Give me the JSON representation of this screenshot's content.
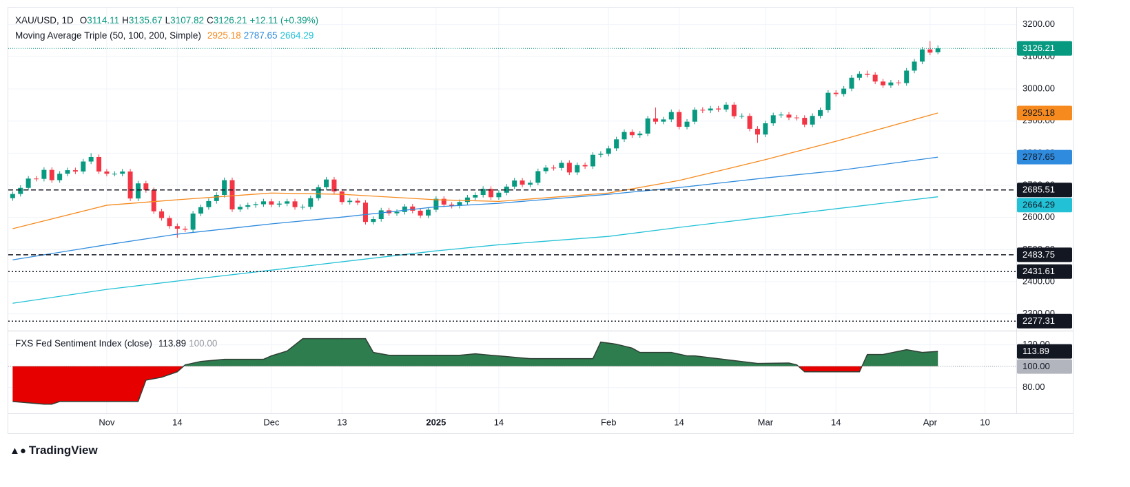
{
  "header": {
    "symbol": "XAU/USD, 1D",
    "ohlc_prefixes": [
      "O",
      "H",
      "L",
      "C"
    ],
    "change": "+12.11 (+0.39%)"
  },
  "brand": "TradingView",
  "chart_data": [
    {
      "type": "candlestick",
      "overlays_title": "Moving Average Triple (50, 100, 200, Simple)",
      "up_color": "#089981",
      "down_color": "#f23645",
      "open": [
        2660,
        2673,
        2692,
        2721,
        2720,
        2748,
        2716,
        2736,
        2747,
        2743,
        2774,
        2788,
        2743,
        2736,
        2736,
        2743,
        2659,
        2706,
        2685,
        2619,
        2598,
        2573,
        2565,
        2562,
        2612,
        2632,
        2651,
        2670,
        2716,
        2625,
        2633,
        2638,
        2641,
        2650,
        2640,
        2643,
        2650,
        2632,
        2633,
        2660,
        2694,
        2718,
        2681,
        2648,
        2652,
        2646,
        2586,
        2595,
        2622,
        2613,
        2617,
        2634,
        2621,
        2606,
        2624,
        2658,
        2640,
        2636,
        2648,
        2662,
        2670,
        2689,
        2663,
        2677,
        2696,
        2715,
        2702,
        2708,
        2744,
        2755,
        2754,
        2770,
        2740,
        2763,
        2759,
        2795,
        2798,
        2815,
        2843,
        2866,
        2856,
        2861,
        2908,
        2898,
        2905,
        2928,
        2882,
        2898,
        2935,
        2933,
        2939,
        2936,
        2951,
        2915,
        2916,
        2876,
        2858,
        2893,
        2918,
        2920,
        2911,
        2910,
        2889,
        2916,
        2934,
        2988,
        2984,
        3001,
        3035,
        3047,
        3044,
        3023,
        3011,
        3020,
        3018,
        3057,
        3085,
        3123,
        3114.11
      ],
      "high": [
        2681,
        2700,
        2729,
        2729,
        2756,
        2756,
        2744,
        2755,
        2755,
        2782,
        2800,
        2796,
        2751,
        2744,
        2751,
        2751,
        2714,
        2714,
        2693,
        2627,
        2606,
        2581,
        2573,
        2620,
        2640,
        2659,
        2678,
        2724,
        2724,
        2641,
        2646,
        2649,
        2658,
        2658,
        2651,
        2658,
        2658,
        2641,
        2668,
        2702,
        2726,
        2726,
        2689,
        2660,
        2660,
        2654,
        2603,
        2630,
        2630,
        2625,
        2642,
        2642,
        2629,
        2632,
        2666,
        2666,
        2648,
        2656,
        2670,
        2678,
        2697,
        2697,
        2685,
        2704,
        2723,
        2723,
        2716,
        2752,
        2763,
        2763,
        2778,
        2778,
        2771,
        2771,
        2803,
        2806,
        2823,
        2851,
        2874,
        2874,
        2869,
        2916,
        2942,
        2913,
        2936,
        2936,
        2906,
        2943,
        2943,
        2947,
        2947,
        2959,
        2959,
        2924,
        2924,
        2884,
        2901,
        2926,
        2928,
        2928,
        2919,
        2918,
        2924,
        2942,
        2996,
        2996,
        3009,
        3043,
        3055,
        3057,
        3052,
        3031,
        3028,
        3028,
        3065,
        3093,
        3131,
        3149,
        3135.67
      ],
      "low": [
        2652,
        2665,
        2684,
        2712,
        2712,
        2708,
        2708,
        2728,
        2735,
        2735,
        2766,
        2735,
        2728,
        2728,
        2728,
        2651,
        2651,
        2677,
        2611,
        2590,
        2565,
        2537,
        2554,
        2554,
        2604,
        2624,
        2643,
        2662,
        2617,
        2617,
        2625,
        2630,
        2633,
        2632,
        2632,
        2635,
        2624,
        2624,
        2625,
        2652,
        2686,
        2673,
        2640,
        2640,
        2638,
        2578,
        2578,
        2587,
        2605,
        2605,
        2609,
        2613,
        2598,
        2598,
        2616,
        2632,
        2628,
        2628,
        2640,
        2654,
        2662,
        2655,
        2655,
        2669,
        2688,
        2694,
        2694,
        2700,
        2736,
        2746,
        2746,
        2732,
        2732,
        2751,
        2751,
        2787,
        2790,
        2807,
        2835,
        2848,
        2848,
        2853,
        2890,
        2890,
        2897,
        2874,
        2874,
        2890,
        2925,
        2925,
        2928,
        2928,
        2907,
        2907,
        2868,
        2832,
        2850,
        2885,
        2910,
        2903,
        2902,
        2881,
        2881,
        2908,
        2926,
        2976,
        2976,
        2993,
        3027,
        3036,
        3015,
        3003,
        3003,
        3010,
        3010,
        3049,
        3077,
        3105,
        3107.82
      ],
      "close": [
        2673,
        2692,
        2721,
        2720,
        2748,
        2716,
        2736,
        2747,
        2743,
        2774,
        2788,
        2743,
        2736,
        2736,
        2743,
        2659,
        2706,
        2685,
        2619,
        2598,
        2573,
        2565,
        2562,
        2612,
        2632,
        2651,
        2670,
        2716,
        2625,
        2633,
        2638,
        2641,
        2650,
        2640,
        2643,
        2650,
        2632,
        2633,
        2660,
        2694,
        2718,
        2681,
        2648,
        2652,
        2646,
        2586,
        2595,
        2622,
        2613,
        2617,
        2634,
        2621,
        2606,
        2624,
        2658,
        2640,
        2636,
        2648,
        2662,
        2670,
        2689,
        2663,
        2677,
        2696,
        2715,
        2702,
        2708,
        2744,
        2755,
        2754,
        2770,
        2740,
        2763,
        2759,
        2795,
        2798,
        2815,
        2843,
        2866,
        2856,
        2861,
        2908,
        2898,
        2905,
        2928,
        2882,
        2898,
        2935,
        2933,
        2939,
        2936,
        2951,
        2915,
        2916,
        2876,
        2858,
        2893,
        2918,
        2920,
        2911,
        2910,
        2889,
        2916,
        2934,
        2988,
        2984,
        3001,
        3035,
        3047,
        3044,
        3023,
        3011,
        3020,
        3018,
        3057,
        3085,
        3123,
        3113,
        3126.21
      ],
      "series": [
        {
          "color": "#f68a1e",
          "x": [
            0,
            12,
            21,
            33,
            42,
            54,
            62,
            76,
            85,
            96,
            105,
            118
          ],
          "values": [
            2565,
            2638,
            2655,
            2676,
            2672,
            2655,
            2650,
            2676,
            2715,
            2780,
            2837,
            2925.18
          ]
        },
        {
          "color": "#2f8bde",
          "x": [
            0,
            12,
            21,
            33,
            42,
            54,
            62,
            76,
            85,
            96,
            105,
            118
          ],
          "values": [
            2468,
            2515,
            2548,
            2580,
            2601,
            2633,
            2644,
            2672,
            2693,
            2723,
            2745,
            2787.65
          ]
        },
        {
          "color": "#22c1d6",
          "x": [
            0,
            12,
            21,
            33,
            42,
            54,
            62,
            76,
            85,
            96,
            105,
            118
          ],
          "values": [
            2333,
            2376,
            2402,
            2436,
            2462,
            2496,
            2515,
            2541,
            2569,
            2601,
            2627,
            2664.29
          ]
        }
      ],
      "hlines": [
        {
          "value": 2685.51,
          "style": "dashed"
        },
        {
          "value": 2483.75,
          "style": "dashed"
        },
        {
          "value": 2431.61,
          "style": "dotted"
        },
        {
          "value": 2277.31,
          "style": "dotted"
        }
      ],
      "xlim": [
        -0.56,
        128
      ],
      "xticks": [
        {
          "value": 12,
          "label": "Nov"
        },
        {
          "value": 21,
          "label": "14"
        },
        {
          "value": 33,
          "label": "Dec"
        },
        {
          "value": 42,
          "label": "13"
        },
        {
          "value": 54,
          "label": "2025"
        },
        {
          "value": 62,
          "label": "14"
        },
        {
          "value": 76,
          "label": "Feb"
        },
        {
          "value": 85,
          "label": "14"
        },
        {
          "value": 96,
          "label": "Mar"
        },
        {
          "value": 105,
          "label": "14"
        },
        {
          "value": 117,
          "label": "Apr"
        },
        {
          "value": 124,
          "label": "10"
        }
      ],
      "ylim": [
        2252,
        3251
      ],
      "yticks": [
        {
          "value": 2300,
          "label": "2300.00"
        },
        {
          "value": 2400,
          "label": "2400.00"
        },
        {
          "value": 2500,
          "label": "2500.00"
        },
        {
          "value": 2600,
          "label": "2600.00"
        },
        {
          "value": 2700,
          "label": "2700.00"
        },
        {
          "value": 2800,
          "label": "2800.00"
        },
        {
          "value": 2900,
          "label": "2900.00"
        },
        {
          "value": 3000,
          "label": "3000.00"
        },
        {
          "value": 3100,
          "label": "3100.00"
        },
        {
          "value": 3200,
          "label": "3200.00"
        }
      ],
      "grid": true
    },
    {
      "type": "area",
      "title": "FXS Fed Sentiment Index (close)",
      "above_color": "#2e7d4f",
      "below_color": "#e60000",
      "line_color": "#2f3f35",
      "x": [
        0,
        4,
        5,
        6,
        16,
        17,
        19,
        21,
        22,
        24,
        27,
        32,
        33,
        35,
        37,
        45,
        46,
        48,
        57,
        59,
        61,
        62,
        66,
        74,
        75,
        77,
        79,
        80,
        84,
        86,
        87,
        95,
        99,
        100,
        101,
        108,
        109,
        111,
        114,
        116,
        118
      ],
      "values": [
        67,
        64.5,
        64.5,
        67,
        67,
        87,
        89.7,
        94.8,
        101.3,
        104.5,
        106.5,
        106.5,
        109.7,
        114.2,
        125.8,
        125.8,
        112.9,
        110.3,
        110.3,
        111.6,
        110.3,
        109.7,
        107.1,
        107.1,
        122.6,
        120.6,
        117,
        112.9,
        112.9,
        109.7,
        109.7,
        102.6,
        103,
        101.3,
        94.8,
        94.8,
        111,
        111,
        115.5,
        112.9,
        113.89
      ],
      "baseline": {
        "value": 100,
        "label": "100.00"
      },
      "xlim": [
        -0.56,
        128
      ],
      "ylim": [
        56,
        132
      ],
      "yticks": [
        {
          "value": 80,
          "label": "80.00"
        },
        {
          "value": 100,
          "label": "100.00"
        },
        {
          "value": 120,
          "label": "120.00"
        }
      ],
      "grid": true
    }
  ]
}
